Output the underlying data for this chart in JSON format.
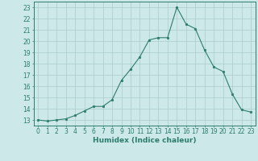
{
  "x": [
    0,
    1,
    2,
    3,
    4,
    5,
    6,
    7,
    8,
    9,
    10,
    11,
    12,
    13,
    14,
    15,
    16,
    17,
    18,
    19,
    20,
    21,
    22,
    23
  ],
  "y": [
    13.0,
    12.9,
    13.0,
    13.1,
    13.4,
    13.8,
    14.2,
    14.2,
    14.8,
    16.5,
    17.5,
    18.6,
    20.1,
    20.3,
    20.3,
    23.0,
    21.5,
    21.1,
    19.2,
    17.7,
    17.3,
    15.3,
    13.9,
    13.7
  ],
  "xlabel": "Humidex (Indice chaleur)",
  "xlim": [
    -0.5,
    23.5
  ],
  "ylim": [
    12.5,
    23.5
  ],
  "yticks": [
    13,
    14,
    15,
    16,
    17,
    18,
    19,
    20,
    21,
    22,
    23
  ],
  "xticks": [
    0,
    1,
    2,
    3,
    4,
    5,
    6,
    7,
    8,
    9,
    10,
    11,
    12,
    13,
    14,
    15,
    16,
    17,
    18,
    19,
    20,
    21,
    22,
    23
  ],
  "line_color": "#2d7d6e",
  "marker_color": "#2d7d6e",
  "bg_color": "#cce8e8",
  "grid_color": "#aacccc",
  "axis_color": "#2d7d6e",
  "tick_color": "#2d7d6e",
  "label_color": "#2d7d6e",
  "font_size_ticks": 5.5,
  "font_size_label": 6.5
}
